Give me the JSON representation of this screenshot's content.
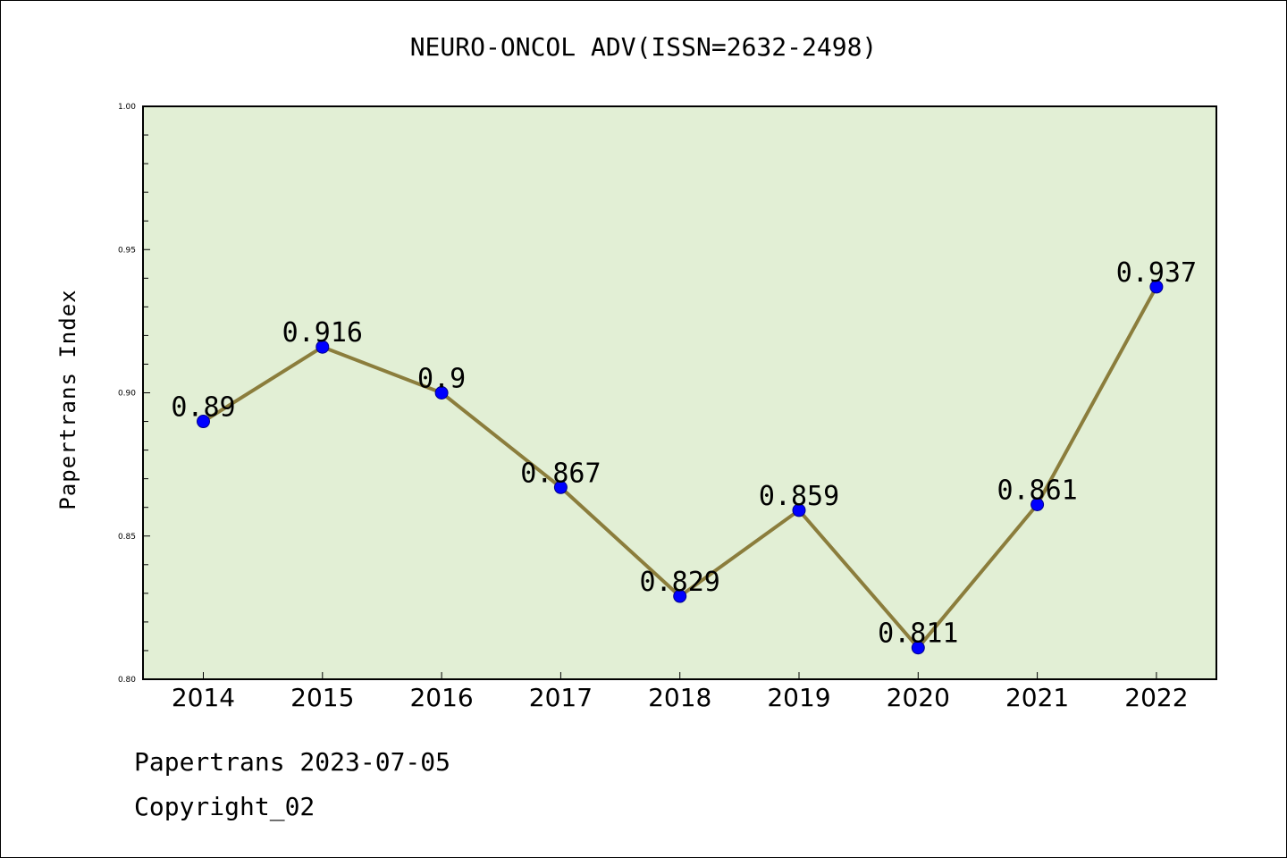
{
  "colors": {
    "plot_background": "#e2efd5",
    "line": "#8b7d3c",
    "marker": "#0000ff",
    "marker_edge": "#00008b"
  },
  "chart_data": {
    "type": "line",
    "title": "NEURO-ONCOL ADV(ISSN=2632-2498)",
    "xlabel": "",
    "ylabel": "Papertrans Index",
    "categories": [
      "2014",
      "2015",
      "2016",
      "2017",
      "2018",
      "2019",
      "2020",
      "2021",
      "2022"
    ],
    "values": [
      0.89,
      0.916,
      0.9,
      0.867,
      0.829,
      0.859,
      0.811,
      0.861,
      0.937
    ],
    "data_labels": [
      "0.89",
      "0.916",
      "0.9",
      "0.867",
      "0.829",
      "0.859",
      "0.811",
      "0.861",
      "0.937"
    ],
    "ylim": [
      0.8,
      1.0
    ],
    "yticks": [
      "0.80",
      "0.85",
      "0.90",
      "0.95",
      "1.00"
    ],
    "grid": false,
    "legend": "none"
  },
  "footer": {
    "date_line": "Papertrans 2023-07-05",
    "copyright_line": "Copyright_02"
  }
}
